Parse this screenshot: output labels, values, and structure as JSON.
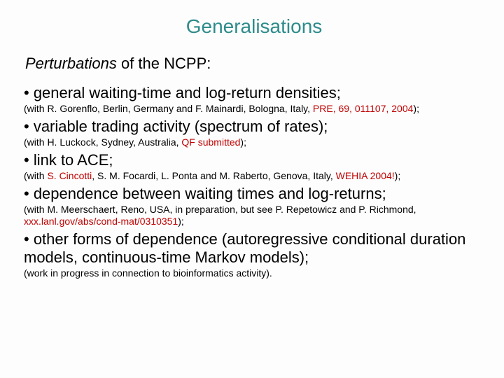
{
  "title_color": "#2e8b8b",
  "highlight_color": "#c00000",
  "background_color": "#fdfdfd",
  "text_color": "#000000",
  "title": "Generalisations",
  "subtitle_italic": "Perturbations",
  "subtitle_rest": " of the NCPP:",
  "b1": "• general waiting-time and log-return densities;",
  "c1a": "(with R. Gorenflo, Berlin, Germany and F. Mainardi, Bologna, Italy,  ",
  "c1h": "PRE, 69, 011107, 2004",
  "c1b": ");",
  "b2": "• variable trading activity (spectrum of rates);",
  "c2a": "(with H. Luckock, Sydney, Australia, ",
  "c2h": "QF submitted",
  "c2b": ");",
  "b3": "• link to ACE;",
  "c3a": "(with ",
  "c3h1": "S. Cincotti",
  "c3m": ", S. M. Focardi, L. Ponta and M. Raberto, Genova, Italy, ",
  "c3h2": "WEHIA 2004!",
  "c3b": ");",
  "b4": "• dependence between waiting times and log-returns;",
  "c4a": "(with M. Meerschaert, Reno, USA, in preparation, but see P. Repetowicz and P. Richmond, ",
  "c4h": "xxx.lanl.gov/abs/cond-mat/0310351",
  "c4b": ");",
  "b5": "• other forms of dependence (autoregressive conditional duration models, continuous-time Markov models);",
  "c5": "(work in progress in connection to bioinformatics activity)."
}
